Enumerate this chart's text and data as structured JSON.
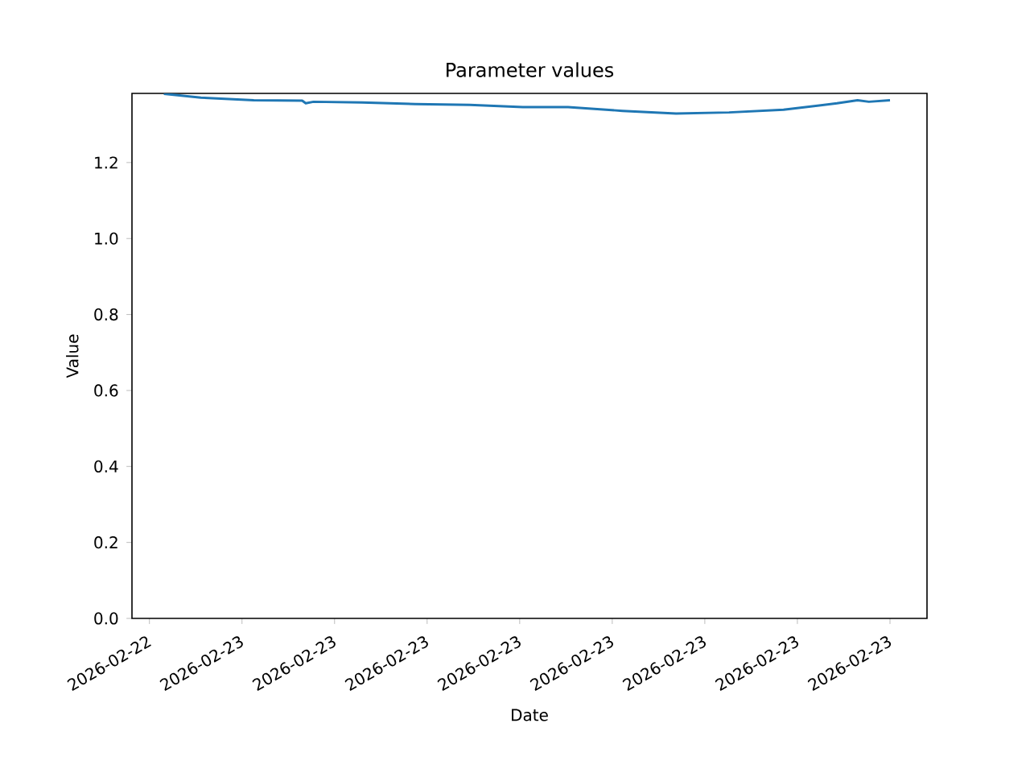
{
  "chart_data": {
    "type": "line",
    "title": "Parameter values",
    "xlabel": "Date",
    "ylabel": "Value",
    "xlim": [
      "2026-02-22T20:26",
      "2026-02-23T22:12"
    ],
    "xticks": [
      {
        "value": "2026-02-22T21:00",
        "label": "2026-02-22"
      },
      {
        "value": "2026-02-23T00:00",
        "label": "2026-02-23"
      },
      {
        "value": "2026-02-23T03:00",
        "label": "2026-02-23"
      },
      {
        "value": "2026-02-23T06:00",
        "label": "2026-02-23"
      },
      {
        "value": "2026-02-23T09:00",
        "label": "2026-02-23"
      },
      {
        "value": "2026-02-23T12:00",
        "label": "2026-02-23"
      },
      {
        "value": "2026-02-23T15:00",
        "label": "2026-02-23"
      },
      {
        "value": "2026-02-23T18:00",
        "label": "2026-02-23"
      },
      {
        "value": "2026-02-23T21:00",
        "label": "2026-02-23"
      }
    ],
    "ylim": [
      0,
      1.382
    ],
    "yticks": [
      {
        "value": 0,
        "label": "0.0"
      },
      {
        "value": 0.2,
        "label": "0.2"
      },
      {
        "value": 0.4,
        "label": "0.4"
      },
      {
        "value": 0.6,
        "label": "0.6"
      },
      {
        "value": 0.8,
        "label": "0.8"
      },
      {
        "value": 1.0,
        "label": "1.0"
      },
      {
        "value": 1.2,
        "label": "1.2"
      }
    ],
    "series": [
      {
        "color": "#1f77b4",
        "x": [
          "2026-02-22T21:28",
          "2026-02-22T22:40",
          "2026-02-23T00:23",
          "2026-02-23T01:57",
          "2026-02-23T02:04",
          "2026-02-23T02:19",
          "2026-02-23T03:53",
          "2026-02-23T05:37",
          "2026-02-23T07:23",
          "2026-02-23T09:06",
          "2026-02-23T10:34",
          "2026-02-23T12:20",
          "2026-02-23T14:04",
          "2026-02-23T15:47",
          "2026-02-23T17:33",
          "2026-02-23T19:17",
          "2026-02-23T19:57",
          "2026-02-23T20:19",
          "2026-02-23T21:00"
        ],
        "values": [
          1.381,
          1.371,
          1.364,
          1.363,
          1.356,
          1.36,
          1.358,
          1.354,
          1.352,
          1.346,
          1.346,
          1.336,
          1.329,
          1.332,
          1.339,
          1.356,
          1.364,
          1.36,
          1.364
        ]
      }
    ]
  }
}
